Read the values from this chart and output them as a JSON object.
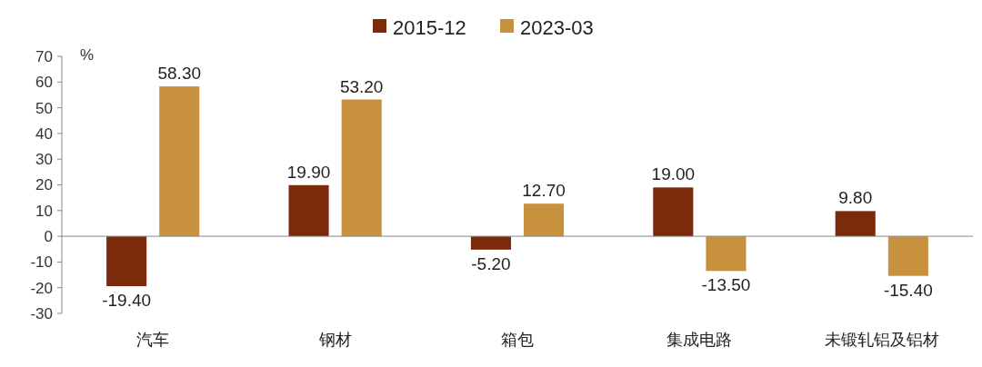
{
  "chart_data": {
    "type": "bar",
    "ylabel": "%",
    "categories": [
      "汽车",
      "钢材",
      "箱包",
      "集成电路",
      "未锻轧铝及铝材"
    ],
    "series": [
      {
        "name": "2015-12",
        "color": "#7b2a0c",
        "values": [
          -19.4,
          19.9,
          -5.2,
          19.0,
          9.8
        ],
        "value_labels": [
          "-19.40",
          "19.90",
          "-5.20",
          "19.00",
          "9.80"
        ]
      },
      {
        "name": "2023-03",
        "color": "#c8913d",
        "values": [
          58.3,
          53.2,
          12.7,
          -13.5,
          -15.4
        ],
        "value_labels": [
          "58.30",
          "53.20",
          "12.70",
          "-13.50",
          "-15.40"
        ]
      }
    ],
    "ylim": [
      -30,
      70
    ],
    "yticks": [
      -30,
      -20,
      -10,
      0,
      10,
      20,
      30,
      40,
      50,
      60,
      70
    ],
    "legend": "top"
  }
}
